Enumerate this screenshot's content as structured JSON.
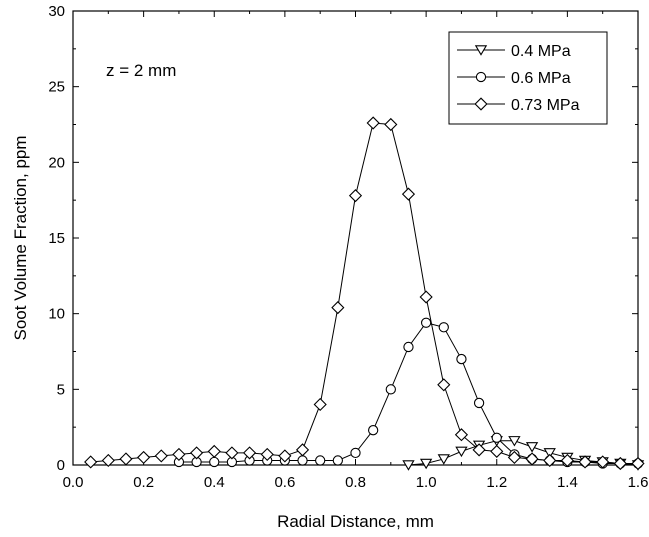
{
  "chart_data": {
    "type": "line",
    "xlabel": "Radial Distance, mm",
    "ylabel": "Soot Volume Fraction, ppm",
    "xlim": [
      0.0,
      1.6
    ],
    "ylim": [
      0,
      30
    ],
    "xticks": [
      "0.0",
      "0.2",
      "0.4",
      "0.6",
      "0.8",
      "1.0",
      "1.2",
      "1.4",
      "1.6"
    ],
    "yticks": [
      "0",
      "5",
      "10",
      "15",
      "20",
      "25",
      "30"
    ],
    "annotation": "z = 2 mm",
    "legend_position": "top-right",
    "grid": false,
    "series": [
      {
        "name": "0.4 MPa",
        "marker": "triangle-down",
        "x": [
          0.95,
          1.0,
          1.05,
          1.1,
          1.15,
          1.2,
          1.25,
          1.3,
          1.35,
          1.4,
          1.45,
          1.5,
          1.55,
          1.6
        ],
        "y": [
          0.0,
          0.1,
          0.4,
          0.9,
          1.3,
          1.6,
          1.6,
          1.2,
          0.8,
          0.5,
          0.3,
          0.2,
          0.1,
          0.0
        ]
      },
      {
        "name": "0.6 MPa",
        "marker": "circle",
        "x": [
          0.3,
          0.35,
          0.4,
          0.45,
          0.5,
          0.55,
          0.6,
          0.65,
          0.7,
          0.75,
          0.8,
          0.85,
          0.9,
          0.95,
          1.0,
          1.05,
          1.1,
          1.15,
          1.2,
          1.25,
          1.3,
          1.35,
          1.4,
          1.45,
          1.5,
          1.55,
          1.6
        ],
        "y": [
          0.2,
          0.2,
          0.2,
          0.2,
          0.3,
          0.3,
          0.3,
          0.3,
          0.3,
          0.3,
          0.8,
          2.3,
          5.0,
          7.8,
          9.4,
          9.1,
          7.0,
          4.1,
          1.8,
          0.7,
          0.4,
          0.3,
          0.2,
          0.2,
          0.1,
          0.1,
          0.1
        ]
      },
      {
        "name": "0.73 MPa",
        "marker": "diamond",
        "x": [
          0.05,
          0.1,
          0.15,
          0.2,
          0.25,
          0.3,
          0.35,
          0.4,
          0.45,
          0.5,
          0.55,
          0.6,
          0.65,
          0.7,
          0.75,
          0.8,
          0.85,
          0.9,
          0.95,
          1.0,
          1.05,
          1.1,
          1.15,
          1.2,
          1.25,
          1.3,
          1.35,
          1.4,
          1.45,
          1.5,
          1.55,
          1.6
        ],
        "y": [
          0.2,
          0.3,
          0.4,
          0.5,
          0.6,
          0.7,
          0.8,
          0.9,
          0.8,
          0.8,
          0.7,
          0.6,
          1.0,
          4.0,
          10.4,
          17.8,
          22.6,
          22.5,
          17.9,
          11.1,
          5.3,
          2.0,
          1.0,
          0.9,
          0.5,
          0.4,
          0.3,
          0.3,
          0.2,
          0.2,
          0.1,
          0.1
        ]
      }
    ]
  }
}
